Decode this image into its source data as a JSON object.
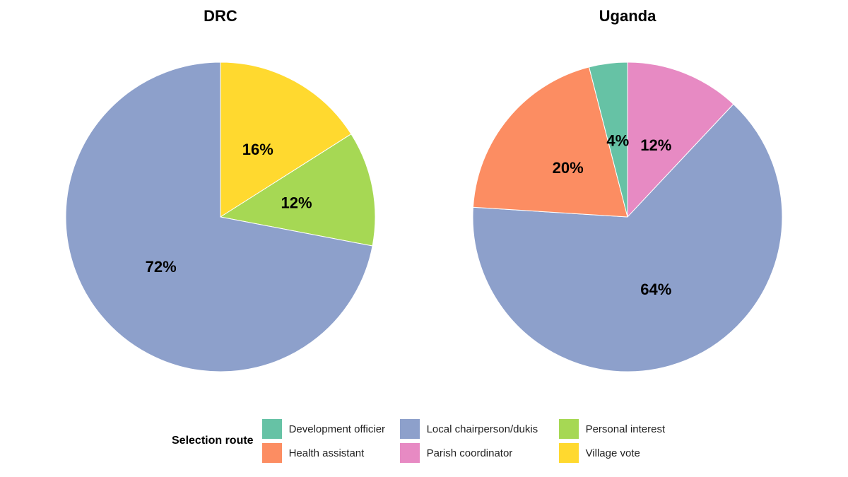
{
  "chart_data": [
    {
      "type": "pie",
      "title": "DRC",
      "slices": [
        {
          "category": "Village vote",
          "value": 16,
          "label": "16%"
        },
        {
          "category": "Personal interest",
          "value": 12,
          "label": "12%"
        },
        {
          "category": "Local chairperson/dukis",
          "value": 72,
          "label": "72%"
        }
      ]
    },
    {
      "type": "pie",
      "title": "Uganda",
      "slices": [
        {
          "category": "Parish coordinator",
          "value": 12,
          "label": "12%"
        },
        {
          "category": "Local chairperson/dukis",
          "value": 64,
          "label": "64%"
        },
        {
          "category": "Health assistant",
          "value": 20,
          "label": "20%"
        },
        {
          "category": "Development officier",
          "value": 4,
          "label": "4%"
        }
      ]
    }
  ],
  "legend": {
    "title": "Selection route",
    "placement": "bottom",
    "items": [
      {
        "label": "Development officier",
        "color": "#66C2A5"
      },
      {
        "label": "Local chairperson/dukis",
        "color": "#8DA0CB"
      },
      {
        "label": "Personal interest",
        "color": "#A6D854"
      },
      {
        "label": "Health assistant",
        "color": "#FC8D62"
      },
      {
        "label": "Parish coordinator",
        "color": "#E78AC3"
      },
      {
        "label": "Village vote",
        "color": "#FFD92F"
      }
    ]
  }
}
